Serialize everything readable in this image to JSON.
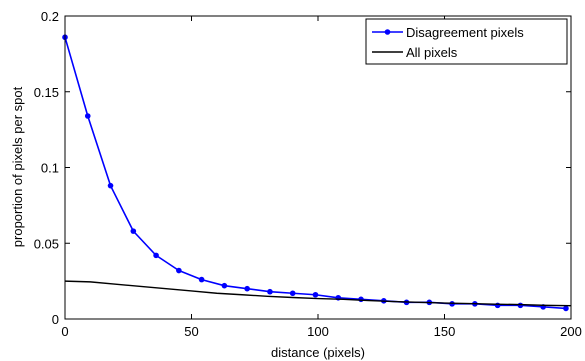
{
  "chart_data": {
    "type": "line",
    "title": "",
    "xlabel": "distance (pixels)",
    "ylabel": "proportion of pixels per spot",
    "xlim": [
      0,
      200
    ],
    "ylim": [
      0,
      0.2
    ],
    "xticks": [
      0,
      50,
      100,
      150,
      200
    ],
    "yticks": [
      0,
      0.05,
      0.1,
      0.15,
      0.2
    ],
    "ytick_labels": [
      "0",
      "0.05",
      "0.1",
      "0.15",
      "0.2"
    ],
    "legend_position": "top-right",
    "grid": false,
    "series": [
      {
        "name": "Disagreement pixels",
        "color": "#0000ff",
        "marker": "dot",
        "x": [
          0,
          9,
          18,
          27,
          36,
          45,
          54,
          63,
          72,
          81,
          90,
          99,
          108,
          117,
          126,
          135,
          144,
          153,
          162,
          171,
          180,
          189,
          198
        ],
        "y": [
          0.186,
          0.134,
          0.088,
          0.058,
          0.042,
          0.032,
          0.026,
          0.022,
          0.02,
          0.018,
          0.017,
          0.016,
          0.014,
          0.013,
          0.012,
          0.011,
          0.011,
          0.01,
          0.01,
          0.009,
          0.009,
          0.008,
          0.007
        ]
      },
      {
        "name": "All pixels",
        "color": "#000000",
        "marker": "none",
        "x": [
          0,
          10,
          20,
          30,
          40,
          50,
          60,
          70,
          80,
          90,
          100,
          110,
          120,
          130,
          140,
          150,
          160,
          170,
          180,
          190,
          200
        ],
        "y": [
          0.025,
          0.0245,
          0.023,
          0.0215,
          0.02,
          0.0185,
          0.017,
          0.016,
          0.015,
          0.0142,
          0.0135,
          0.013,
          0.0122,
          0.0115,
          0.011,
          0.0105,
          0.0102,
          0.0098,
          0.0095,
          0.009,
          0.0088
        ]
      }
    ]
  }
}
